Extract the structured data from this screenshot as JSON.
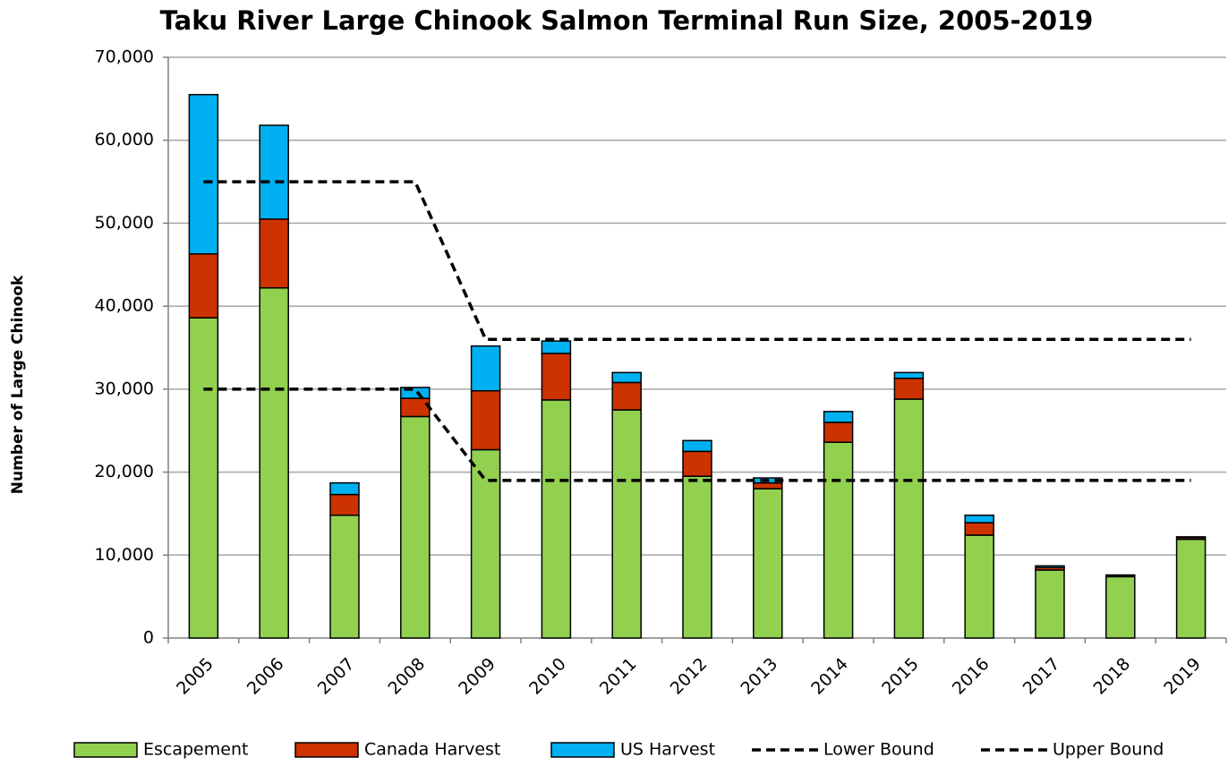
{
  "chart_data": {
    "type": "bar",
    "stacked": true,
    "title": "Taku River Large Chinook Salmon Terminal Run Size, 2005-2019",
    "y_label": "Number of Large Chinook",
    "categories": [
      "2005",
      "2006",
      "2007",
      "2008",
      "2009",
      "2010",
      "2011",
      "2012",
      "2013",
      "2014",
      "2015",
      "2016",
      "2017",
      "2018",
      "2019"
    ],
    "series": [
      {
        "name": "Escapement",
        "type": "bar",
        "color": "#92d050",
        "values": [
          38600,
          42200,
          14800,
          26700,
          22700,
          28700,
          27500,
          19500,
          18000,
          23600,
          28800,
          12400,
          8200,
          7400,
          11900
        ]
      },
      {
        "name": "Canada Harvest",
        "type": "bar",
        "color": "#cc3300",
        "values": [
          7700,
          8300,
          2500,
          2200,
          7100,
          5600,
          3300,
          3000,
          700,
          2400,
          2500,
          1500,
          300,
          100,
          200
        ]
      },
      {
        "name": "US Harvest",
        "type": "bar",
        "color": "#00b0f0",
        "values": [
          19200,
          11300,
          1400,
          1300,
          5400,
          1500,
          1200,
          1300,
          600,
          1300,
          700,
          900,
          200,
          100,
          100
        ]
      },
      {
        "name": "Lower Bound",
        "type": "line",
        "color": "#000000",
        "dashed": true,
        "values": [
          30000,
          30000,
          30000,
          30000,
          19000,
          19000,
          19000,
          19000,
          19000,
          19000,
          19000,
          19000,
          19000,
          19000,
          19000
        ]
      },
      {
        "name": "Upper Bound",
        "type": "line",
        "color": "#000000",
        "dashed": true,
        "values": [
          55000,
          55000,
          55000,
          55000,
          36000,
          36000,
          36000,
          36000,
          36000,
          36000,
          36000,
          36000,
          36000,
          36000,
          36000
        ]
      }
    ],
    "ylim": [
      0,
      70000
    ],
    "yticks": [
      0,
      {
        "value": 10000,
        "label": "10,000"
      },
      {
        "value": 20000,
        "label": "20,000"
      },
      {
        "value": 30000,
        "label": "30,000"
      },
      {
        "value": 40000,
        "label": "40,000"
      },
      {
        "value": 50000,
        "label": "50,000"
      },
      {
        "value": 60000,
        "label": "60,000"
      },
      {
        "value": 70000,
        "label": "70,000"
      }
    ],
    "grid": true,
    "legend": "bottom"
  }
}
